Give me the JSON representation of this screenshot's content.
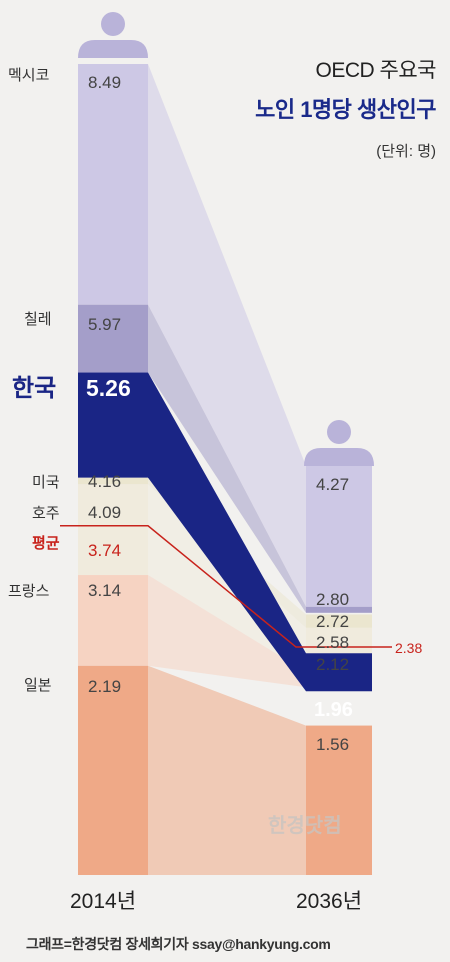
{
  "title": "OECD 주요국",
  "subtitle": "노인 1명당 생산인구",
  "unit": "(단위: 명)",
  "credit": "그래프=한경닷컴 장세희기자 ssay@hankyung.com",
  "watermark": "한경닷컴",
  "colors": {
    "korea": "#1a2585",
    "average": "#c8231c",
    "mexico": "#cdc8e5",
    "chile": "#a49ec9",
    "usa": "#ebe6cf",
    "australia": "#f0ebdd",
    "france": "#f6d3c2",
    "japan": "#efa987"
  },
  "chart_data": {
    "type": "bar",
    "categories": [
      "2014년",
      "2036년"
    ],
    "series": [
      {
        "name": "멕시코",
        "values": [
          8.49,
          4.27
        ]
      },
      {
        "name": "칠레",
        "values": [
          5.97,
          2.8
        ]
      },
      {
        "name": "한국",
        "values": [
          5.26,
          1.96
        ]
      },
      {
        "name": "미국",
        "values": [
          4.16,
          2.58
        ]
      },
      {
        "name": "호주",
        "values": [
          4.09,
          2.72
        ]
      },
      {
        "name": "평균",
        "values": [
          3.74,
          2.38
        ]
      },
      {
        "name": "프랑스",
        "values": [
          3.14,
          2.12
        ]
      },
      {
        "name": "일본",
        "values": [
          2.19,
          1.56
        ]
      }
    ],
    "value_labels": {
      "2014": [
        "8.49",
        "5.97",
        "5.26",
        "4.16",
        "4.09",
        "3.74",
        "3.14",
        "2.19"
      ],
      "2036": [
        "4.27",
        "2.80",
        "1.96",
        "2.58",
        "2.72",
        "2.38",
        "2.12",
        "1.56"
      ]
    }
  }
}
